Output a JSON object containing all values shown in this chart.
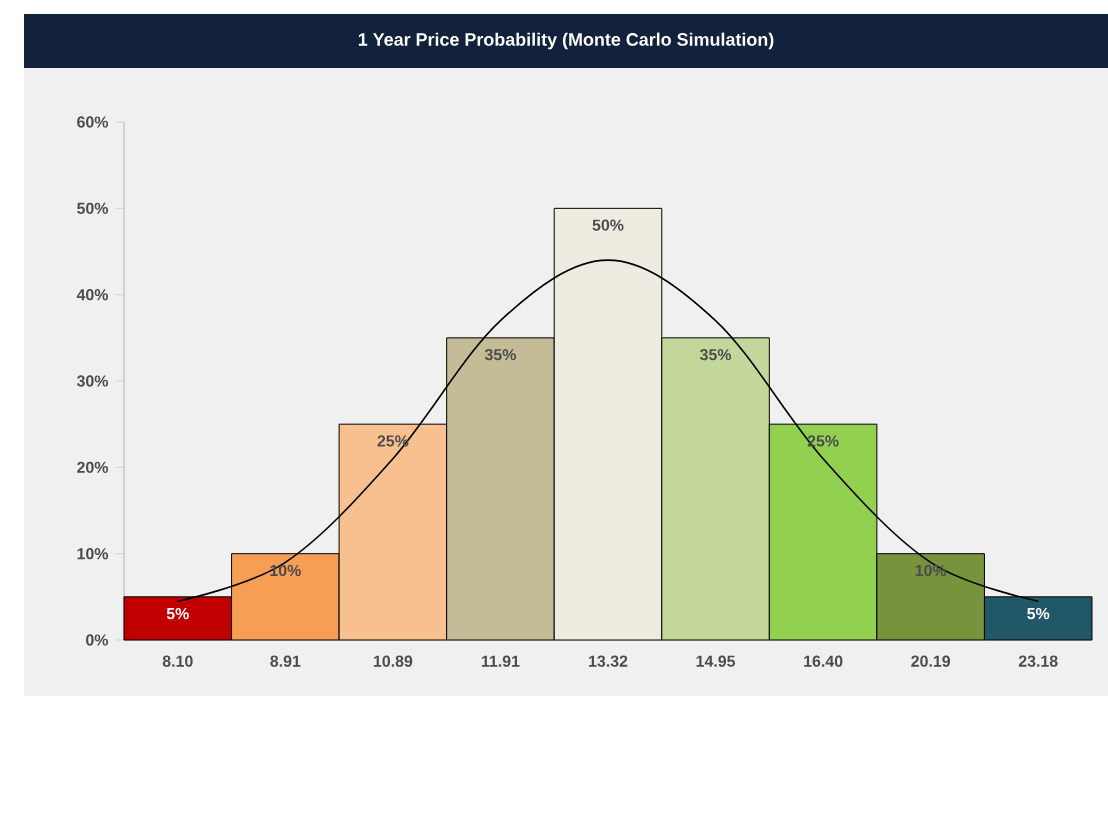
{
  "chart_data": {
    "type": "bar",
    "title": "1 Year Price Probability (Monte Carlo Simulation)",
    "categories": [
      "8.10",
      "8.91",
      "10.89",
      "11.91",
      "13.32",
      "14.95",
      "16.40",
      "20.19",
      "23.18"
    ],
    "series": [
      {
        "values": [
          5,
          10,
          25,
          35,
          50,
          35,
          25,
          10,
          5
        ],
        "colors": [
          "#c00000",
          "#f79e55",
          "#f8c08f",
          "#c4bc96",
          "#eeece1",
          "#c4d79b",
          "#92d050",
          "#77933c",
          "#215868"
        ],
        "value_labels": [
          "5%",
          "10%",
          "25%",
          "35%",
          "50%",
          "35%",
          "25%",
          "10%",
          "5%"
        ]
      },
      {
        "type": "line",
        "color": "#000000",
        "values": [
          4.5,
          9,
          21,
          37,
          44,
          37,
          21,
          9,
          4.5
        ]
      }
    ],
    "ylim": [
      0,
      60
    ],
    "yticks": [
      {
        "value": 0,
        "label": "0%"
      },
      {
        "value": 10,
        "label": "10%"
      },
      {
        "value": 20,
        "label": "20%"
      },
      {
        "value": 30,
        "label": "30%"
      },
      {
        "value": 40,
        "label": "40%"
      },
      {
        "value": 50,
        "label": "50%"
      },
      {
        "value": 60,
        "label": "60%"
      }
    ],
    "tick_labels": "xy"
  }
}
